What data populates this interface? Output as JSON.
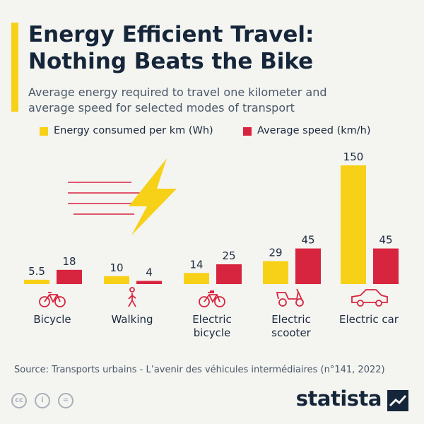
{
  "header": {
    "title_line1": "Energy Efficient Travel:",
    "title_line2": "Nothing Beats the Bike",
    "subtitle_line1": "Average energy required to travel one kilometer and",
    "subtitle_line2": "average speed for selected modes of transport"
  },
  "legend": {
    "energy_label": "Energy consumed per km (Wh)",
    "speed_label": "Average speed (km/h)"
  },
  "colors": {
    "energy": "#f7d117",
    "speed": "#d8253f",
    "icon": "#d8253f"
  },
  "chart_data": {
    "type": "bar",
    "categories": [
      "Bicycle",
      "Walking",
      "Electric bicycle",
      "Electric scooter",
      "Electric car"
    ],
    "category_label_lines": [
      [
        "Bicycle"
      ],
      [
        "Walking"
      ],
      [
        "Electric",
        "bicycle"
      ],
      [
        "Electric",
        "scooter"
      ],
      [
        "Electric car"
      ]
    ],
    "icons": [
      "bicycle-icon",
      "walking-icon",
      "electric-bicycle-icon",
      "electric-scooter-icon",
      "electric-car-icon"
    ],
    "series": [
      {
        "name": "Energy consumed per km (Wh)",
        "values": [
          5.5,
          10,
          14,
          29,
          150
        ],
        "labels": [
          "5.5",
          "10",
          "14",
          "29",
          "150"
        ]
      },
      {
        "name": "Average speed (km/h)",
        "values": [
          18,
          4,
          25,
          45,
          45
        ],
        "labels": [
          "18",
          "4",
          "25",
          "45",
          "45"
        ]
      }
    ],
    "ylim": [
      0,
      150
    ],
    "grid": false,
    "legend_position": "top-left"
  },
  "footer": {
    "source": "Source: Transports urbains - L’avenir des véhicules intermédiaires (n°141, 2022)",
    "brand": "statista",
    "license_icons": [
      "creative-commons-icon",
      "attribution-icon",
      "no-derivatives-icon"
    ]
  }
}
